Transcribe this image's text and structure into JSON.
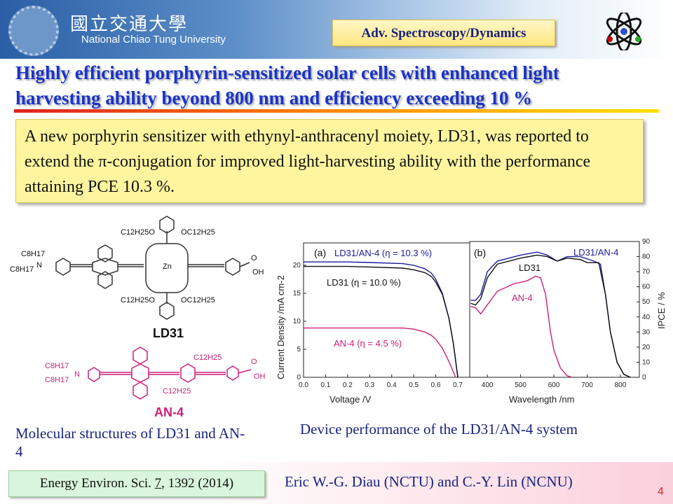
{
  "header": {
    "university_cn": "國立交通大學",
    "university_en": "National Chiao Tung University",
    "category_tag": "Adv. Spectroscopy/Dynamics"
  },
  "title": {
    "line1": "Highly efficient porphyrin-sensitized solar cells with enhanced light",
    "line2": "harvesting ability beyond 800 nm and efficiency exceeding 10 %"
  },
  "summary": "A new porphyrin sensitizer with ethynyl-anthracenyl moiety, LD31, was reported to extend the π-conjugation for improved light-harvesting ability with the performance attaining PCE 10.3 %.",
  "structures": {
    "ld31_name": "LD31",
    "an4_name": "AN-4",
    "labels": {
      "c12o": "C12H25O",
      "oc12": "OC12H25",
      "c8": "C8H17",
      "n": "N",
      "zn": "Zn",
      "oh": "OH",
      "o": "O",
      "c12": "C12H25"
    }
  },
  "captions": {
    "left": "Molecular structures of LD31 and AN-4",
    "right": "Device performance of the LD31/AN-4 system"
  },
  "footer": {
    "citation_prefix": "Energy Environ. Sci. ",
    "citation_volume": "7",
    "citation_suffix": ", 1392 (2014)",
    "authors": "Eric W.-G. Diau (NCTU) and C.-Y. Lin (NCNU)",
    "page": "4"
  },
  "colors": {
    "blue": "#1c1c9c",
    "black": "#111111",
    "magenta": "#cc1f77"
  },
  "chart_data": [
    {
      "type": "line",
      "panel": "(a)",
      "xlabel": "Voltage /V",
      "ylabel": "Current Density /mA cm-2",
      "xlim": [
        0,
        0.754
      ],
      "ylim": [
        0,
        24
      ],
      "xticks": [
        "0.0",
        "0.1",
        "0.2",
        "0.3",
        "0.4",
        "0.5",
        "0.6",
        "0.7"
      ],
      "yticks": [
        "0",
        "5",
        "10",
        "15",
        "20"
      ],
      "series": [
        {
          "name": "LD31/AN-4 (η = 10.3 %)",
          "color": "#1c1c9c",
          "x": [
            0,
            0.2,
            0.3,
            0.45,
            0.5,
            0.55,
            0.58,
            0.6,
            0.63,
            0.66,
            0.68,
            0.7
          ],
          "y": [
            20.6,
            20.6,
            20.5,
            20.3,
            20.0,
            19.4,
            18.6,
            17.5,
            15,
            10.5,
            6,
            0
          ]
        },
        {
          "name": "LD31 (η = 10.0 %)",
          "color": "#111111",
          "x": [
            0,
            0.2,
            0.3,
            0.45,
            0.5,
            0.55,
            0.58,
            0.6,
            0.63,
            0.66,
            0.68,
            0.7
          ],
          "y": [
            19.8,
            19.8,
            19.7,
            19.5,
            19.2,
            18.7,
            18.0,
            17,
            14.8,
            10.5,
            6,
            0
          ]
        },
        {
          "name": "AN-4 (η = 4.5 %)",
          "color": "#cc1f77",
          "x": [
            0,
            0.3,
            0.45,
            0.5,
            0.55,
            0.58,
            0.6,
            0.63,
            0.66,
            0.69
          ],
          "y": [
            8.8,
            8.8,
            8.8,
            8.6,
            8.1,
            7.5,
            6.8,
            5.2,
            2.8,
            0
          ]
        }
      ]
    },
    {
      "type": "line",
      "panel": "(b)",
      "xlabel": "Wavelength /nm",
      "ylabel": "IPCE / %",
      "xlim": [
        347,
        857
      ],
      "ylim": [
        0,
        90
      ],
      "xticks": [
        "400",
        "500",
        "600",
        "700",
        "800"
      ],
      "yticks": [
        "0",
        "10",
        "20",
        "30",
        "40",
        "50",
        "60",
        "70",
        "80",
        "90"
      ],
      "series": [
        {
          "name": "LD31/AN-4",
          "color": "#1c1c9c",
          "x": [
            350,
            365,
            380,
            400,
            430,
            500,
            550,
            580,
            610,
            640,
            680,
            720,
            740,
            755,
            770,
            790,
            810,
            830
          ],
          "y": [
            51,
            51,
            55,
            70,
            77,
            81,
            83,
            81,
            77,
            80,
            80,
            77,
            75,
            55,
            30,
            10,
            2,
            0
          ]
        },
        {
          "name": "LD31",
          "color": "#111111",
          "x": [
            350,
            365,
            380,
            400,
            430,
            500,
            550,
            580,
            610,
            640,
            680,
            700,
            735,
            755,
            770,
            790,
            810,
            830
          ],
          "y": [
            49,
            48,
            52,
            66,
            75,
            79,
            81,
            80,
            77,
            79,
            78,
            76,
            76,
            55,
            30,
            10,
            2,
            0
          ]
        },
        {
          "name": "AN-4",
          "color": "#cc1f77",
          "x": [
            350,
            365,
            380,
            400,
            430,
            480,
            520,
            545,
            560,
            575,
            590,
            600,
            620,
            640,
            655
          ],
          "y": [
            47,
            46,
            42,
            48,
            57,
            62,
            64,
            67,
            66,
            55,
            30,
            18,
            6,
            1,
            0
          ]
        }
      ]
    }
  ]
}
